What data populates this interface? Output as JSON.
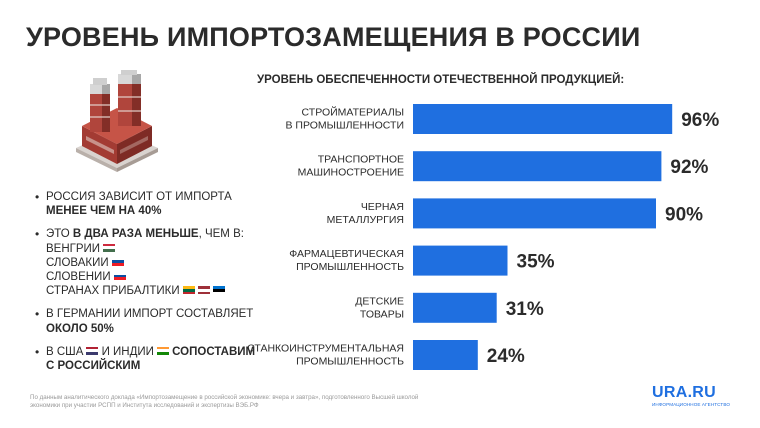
{
  "title": "УРОВЕНЬ ИМПОРТОЗАМЕЩЕНИЯ В РОССИИ",
  "facts": [
    {
      "parts": [
        {
          "text": "РОССИЯ ЗАВИСИТ ОТ ИМПОРТА "
        },
        {
          "text": "МЕНЕЕ ЧЕМ НА 40%",
          "bold": true
        }
      ]
    },
    {
      "parts": [
        {
          "text": "ЭТО "
        },
        {
          "text": "В ДВА РАЗА МЕНЬШЕ",
          "bold": true
        },
        {
          "text": ", ЧЕМ В:"
        }
      ],
      "lines": [
        {
          "text": "ВЕНГРИИ",
          "flags": [
            "hu"
          ]
        },
        {
          "text": "СЛОВАКИИ",
          "flags": [
            "sk"
          ]
        },
        {
          "text": "СЛОВЕНИИ",
          "flags": [
            "si"
          ]
        },
        {
          "text": "СТРАНАХ ПРИБАЛТИКИ",
          "flags": [
            "lt",
            "lv",
            "ee"
          ]
        }
      ]
    },
    {
      "parts": [
        {
          "text": "В ГЕРМАНИИ ИМПОРТ СОСТАВЛЯЕТ "
        },
        {
          "text": "ОКОЛО 50%",
          "bold": true
        }
      ]
    },
    {
      "parts": [
        {
          "text": "В США"
        },
        {
          "flag": "us"
        },
        {
          "text": " И ИНДИИ"
        },
        {
          "flag": "in"
        },
        {
          "text": " "
        },
        {
          "text": "СОПОСТАВИМ С РОССИЙСКИМ",
          "bold": true
        }
      ]
    }
  ],
  "flag_colors": {
    "hu": [
      "#cd2a3e",
      "#ffffff",
      "#436f4d"
    ],
    "sk": [
      "#ffffff",
      "#0b4ea2",
      "#ee1c25"
    ],
    "si": [
      "#ffffff",
      "#0b4ea2",
      "#ee1c25"
    ],
    "lt": [
      "#fdb913",
      "#006a44",
      "#c1272d"
    ],
    "lv": [
      "#9e3039",
      "#ffffff",
      "#9e3039"
    ],
    "ee": [
      "#0072ce",
      "#000000",
      "#ffffff"
    ],
    "us": [
      "#b22234",
      "#ffffff",
      "#3c3b6e"
    ],
    "in": [
      "#ff9933",
      "#ffffff",
      "#138808"
    ]
  },
  "chart_heading": "УРОВЕНЬ ОБЕСПЕЧЕННОСТИ ОТЕЧЕСТВЕННОЙ ПРОДУКЦИЕЙ:",
  "chart_data": {
    "type": "bar",
    "orientation": "horizontal",
    "categories": [
      [
        "СТРОЙМАТЕРИАЛЫ",
        "В ПРОМЫШЛЕННОСТИ"
      ],
      [
        "ТРАНСПОРТНОЕ",
        "МАШИНОСТРОЕНИЕ"
      ],
      [
        "ЧЕРНАЯ",
        "МЕТАЛЛУРГИЯ"
      ],
      [
        "ФАРМАЦЕВТИЧЕСКАЯ",
        "ПРОМЫШЛЕННОСТЬ"
      ],
      [
        "ДЕТСКИЕ",
        "ТОВАРЫ"
      ],
      [
        "СТАНКОИНСТРУМЕНТАЛЬНАЯ",
        "ПРОМЫШЛЕННОСТЬ"
      ]
    ],
    "values": [
      96,
      92,
      90,
      35,
      31,
      24
    ],
    "value_labels": [
      "96%",
      "92%",
      "90%",
      "35%",
      "31%",
      "24%"
    ],
    "xlim": [
      0,
      100
    ],
    "bar_color": "#1f6fe0",
    "grid": false,
    "legend": "none"
  },
  "footer": "По данным аналитического доклада «Импортозамещение в российской экономике: вчера и завтра», подготовленного Высшей школой экономики при участии РСПП и Института исследований и экспертизы ВЭБ.РФ",
  "logo": {
    "text": "URA.RU",
    "subtitle": "ИНФОРМАЦИОННОЕ АГЕНТСТВО"
  },
  "colors": {
    "accent": "#1f6fe0",
    "text": "#2b2b2b",
    "muted": "#9a9a9a"
  }
}
